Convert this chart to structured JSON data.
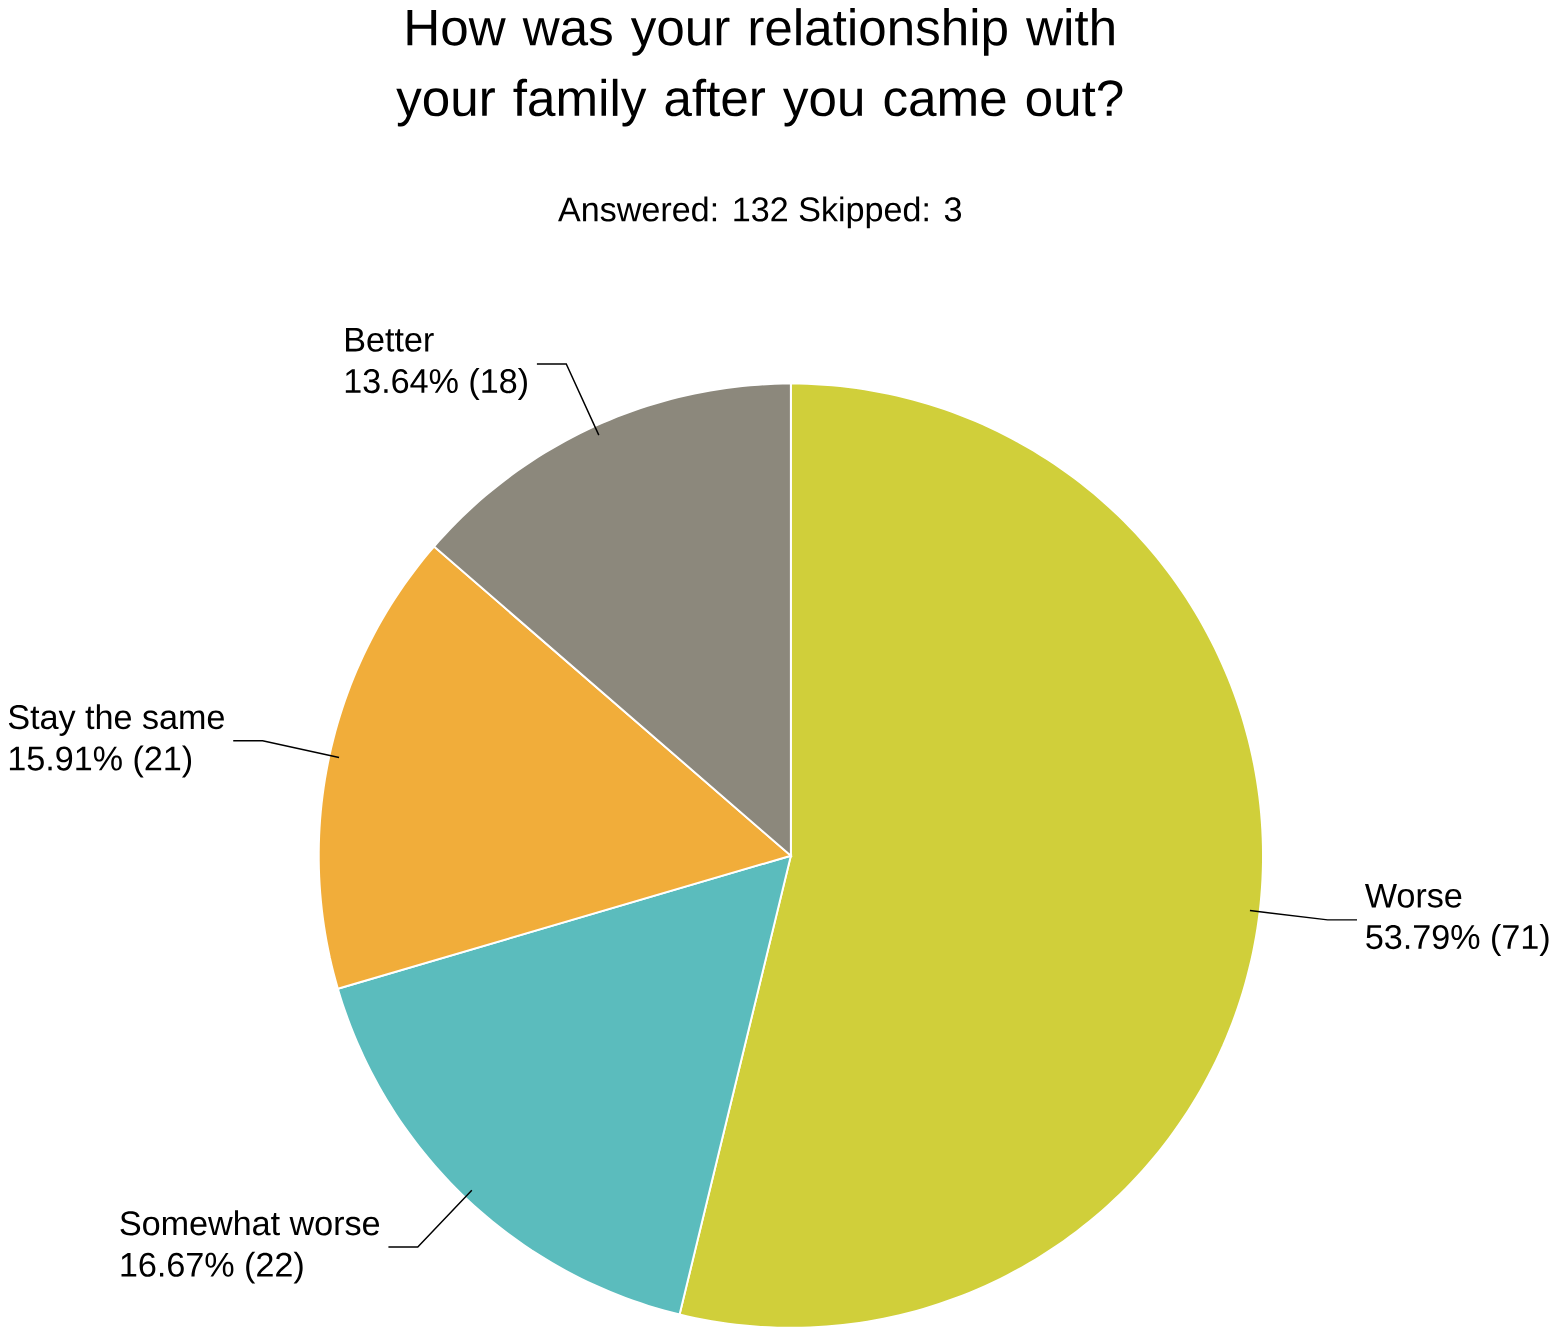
{
  "chart_data": {
    "type": "pie",
    "title": "How was your relationship with your family after you came out?",
    "subtitle": "Answered: 132  Skipped: 3",
    "categories": [
      "Worse",
      "Somewhat worse",
      "Stay the same",
      "Better"
    ],
    "values": [
      71,
      22,
      21,
      18
    ],
    "value_labels": [
      "53.79% (71)",
      "16.67% (22)",
      "15.91% (21)",
      "13.64% (18)"
    ],
    "colors": [
      "#d0cf3a",
      "#5bbcbd",
      "#f1ad3a",
      "#8c887c"
    ]
  }
}
